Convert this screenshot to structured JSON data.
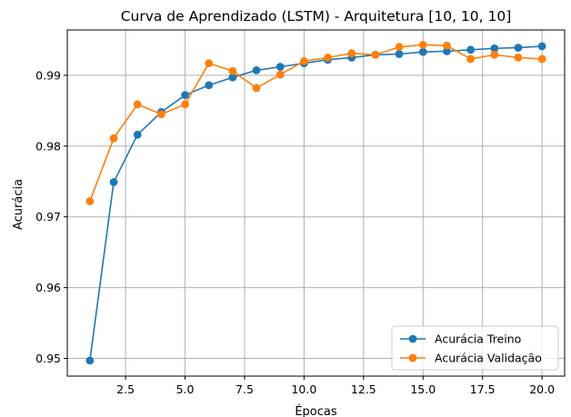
{
  "chart_data": {
    "type": "line",
    "title": "Curva de Aprendizado (LSTM) - Arquitetura [10, 10, 10]",
    "xlabel": "Épocas",
    "ylabel": "Acurácia",
    "xlim": [
      0.05,
      20.95
    ],
    "ylim": [
      0.9475,
      0.9964
    ],
    "xticks": [
      2.5,
      5.0,
      7.5,
      10.0,
      12.5,
      15.0,
      17.5,
      20.0
    ],
    "xtick_labels": [
      "2.5",
      "5.0",
      "7.5",
      "10.0",
      "12.5",
      "15.0",
      "17.5",
      "20.0"
    ],
    "yticks": [
      0.95,
      0.96,
      0.97,
      0.98,
      0.99
    ],
    "ytick_labels": [
      "0.95",
      "0.96",
      "0.97",
      "0.98",
      "0.99"
    ],
    "grid": true,
    "legend_position": "lower-right",
    "x": [
      1,
      2,
      3,
      4,
      5,
      6,
      7,
      8,
      9,
      10,
      11,
      12,
      13,
      14,
      15,
      16,
      17,
      18,
      19,
      20
    ],
    "series": [
      {
        "name": "Acurácia Treino",
        "color": "#1f77b4",
        "values": [
          0.9497,
          0.9749,
          0.9816,
          0.9848,
          0.9872,
          0.9886,
          0.9897,
          0.9907,
          0.9912,
          0.9917,
          0.9922,
          0.9925,
          0.9929,
          0.993,
          0.9933,
          0.9934,
          0.9936,
          0.9938,
          0.9939,
          0.9941
        ]
      },
      {
        "name": "Acurácia Validação",
        "color": "#ff7f0e",
        "values": [
          0.9722,
          0.9811,
          0.9859,
          0.9845,
          0.9859,
          0.9917,
          0.9906,
          0.9882,
          0.9901,
          0.992,
          0.9925,
          0.9931,
          0.9929,
          0.994,
          0.9943,
          0.9942,
          0.9923,
          0.9929,
          0.9925,
          0.9923
        ]
      }
    ]
  }
}
